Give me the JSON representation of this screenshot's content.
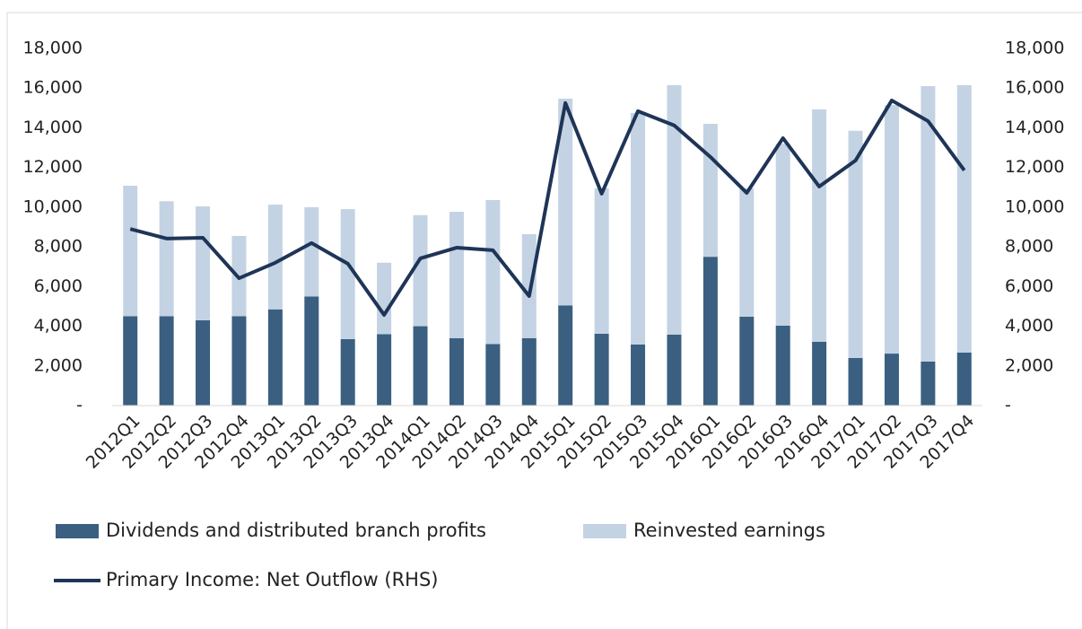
{
  "chart_data": {
    "type": "bar-line",
    "categories": [
      "2012Q1",
      "2012Q2",
      "2012Q3",
      "2012Q4",
      "2013Q1",
      "2013Q2",
      "2013Q3",
      "2013Q4",
      "2014Q1",
      "2014Q2",
      "2014Q3",
      "2014Q4",
      "2015Q1",
      "2015Q2",
      "2015Q3",
      "2015Q4",
      "2016Q1",
      "2016Q2",
      "2016Q3",
      "2016Q4",
      "2017Q1",
      "2017Q2",
      "2017Q3",
      "2017Q4"
    ],
    "series": [
      {
        "name": "Dividends and distributed branch profits",
        "type": "bar",
        "stack": true,
        "color": "#3a5f80",
        "values": [
          4500,
          4500,
          4300,
          4500,
          4850,
          5500,
          3350,
          3600,
          4000,
          3400,
          3100,
          3400,
          5050,
          3620,
          3080,
          3580,
          7500,
          4480,
          4030,
          3220,
          2400,
          2620,
          2220,
          2670
        ]
      },
      {
        "name": "Reinvested earnings",
        "type": "bar",
        "stack": true,
        "color": "#c3d3e4",
        "values": [
          6580,
          5800,
          5740,
          4050,
          5280,
          4500,
          6550,
          3600,
          5600,
          6370,
          7260,
          5240,
          10420,
          7330,
          11670,
          12570,
          6700,
          6470,
          9170,
          11710,
          11450,
          12530,
          13880,
          13480
        ]
      },
      {
        "name": "Primary Income: Net Outflow (RHS)",
        "type": "line",
        "axis": "y2",
        "color": "#1f3557",
        "values": [
          8900,
          8420,
          8460,
          6420,
          7200,
          8190,
          7150,
          4570,
          7420,
          7960,
          7830,
          5520,
          15250,
          10680,
          14840,
          14120,
          12530,
          10720,
          13480,
          11040,
          12350,
          15380,
          14340,
          11860
        ]
      }
    ],
    "ylim": [
      0,
      18000
    ],
    "yticks": [
      {
        "value": 0,
        "label": "-"
      },
      {
        "value": 2000,
        "label": "2,000"
      },
      {
        "value": 4000,
        "label": "4,000"
      },
      {
        "value": 6000,
        "label": "6,000"
      },
      {
        "value": 8000,
        "label": "8,000"
      },
      {
        "value": 10000,
        "label": "10,000"
      },
      {
        "value": 12000,
        "label": "12,000"
      },
      {
        "value": 14000,
        "label": "14,000"
      },
      {
        "value": 16000,
        "label": "16,000"
      },
      {
        "value": 18000,
        "label": "18,000"
      }
    ],
    "y2lim": [
      0,
      18000
    ],
    "y2ticks": [
      {
        "value": 0,
        "label": "-"
      },
      {
        "value": 2000,
        "label": "2,000"
      },
      {
        "value": 4000,
        "label": "4,000"
      },
      {
        "value": 6000,
        "label": "6,000"
      },
      {
        "value": 8000,
        "label": "8,000"
      },
      {
        "value": 10000,
        "label": "10,000"
      },
      {
        "value": 12000,
        "label": "12,000"
      },
      {
        "value": 14000,
        "label": "14,000"
      },
      {
        "value": 16000,
        "label": "16,000"
      },
      {
        "value": 18000,
        "label": "18,000"
      }
    ],
    "grid": false,
    "legend": "bottom"
  }
}
